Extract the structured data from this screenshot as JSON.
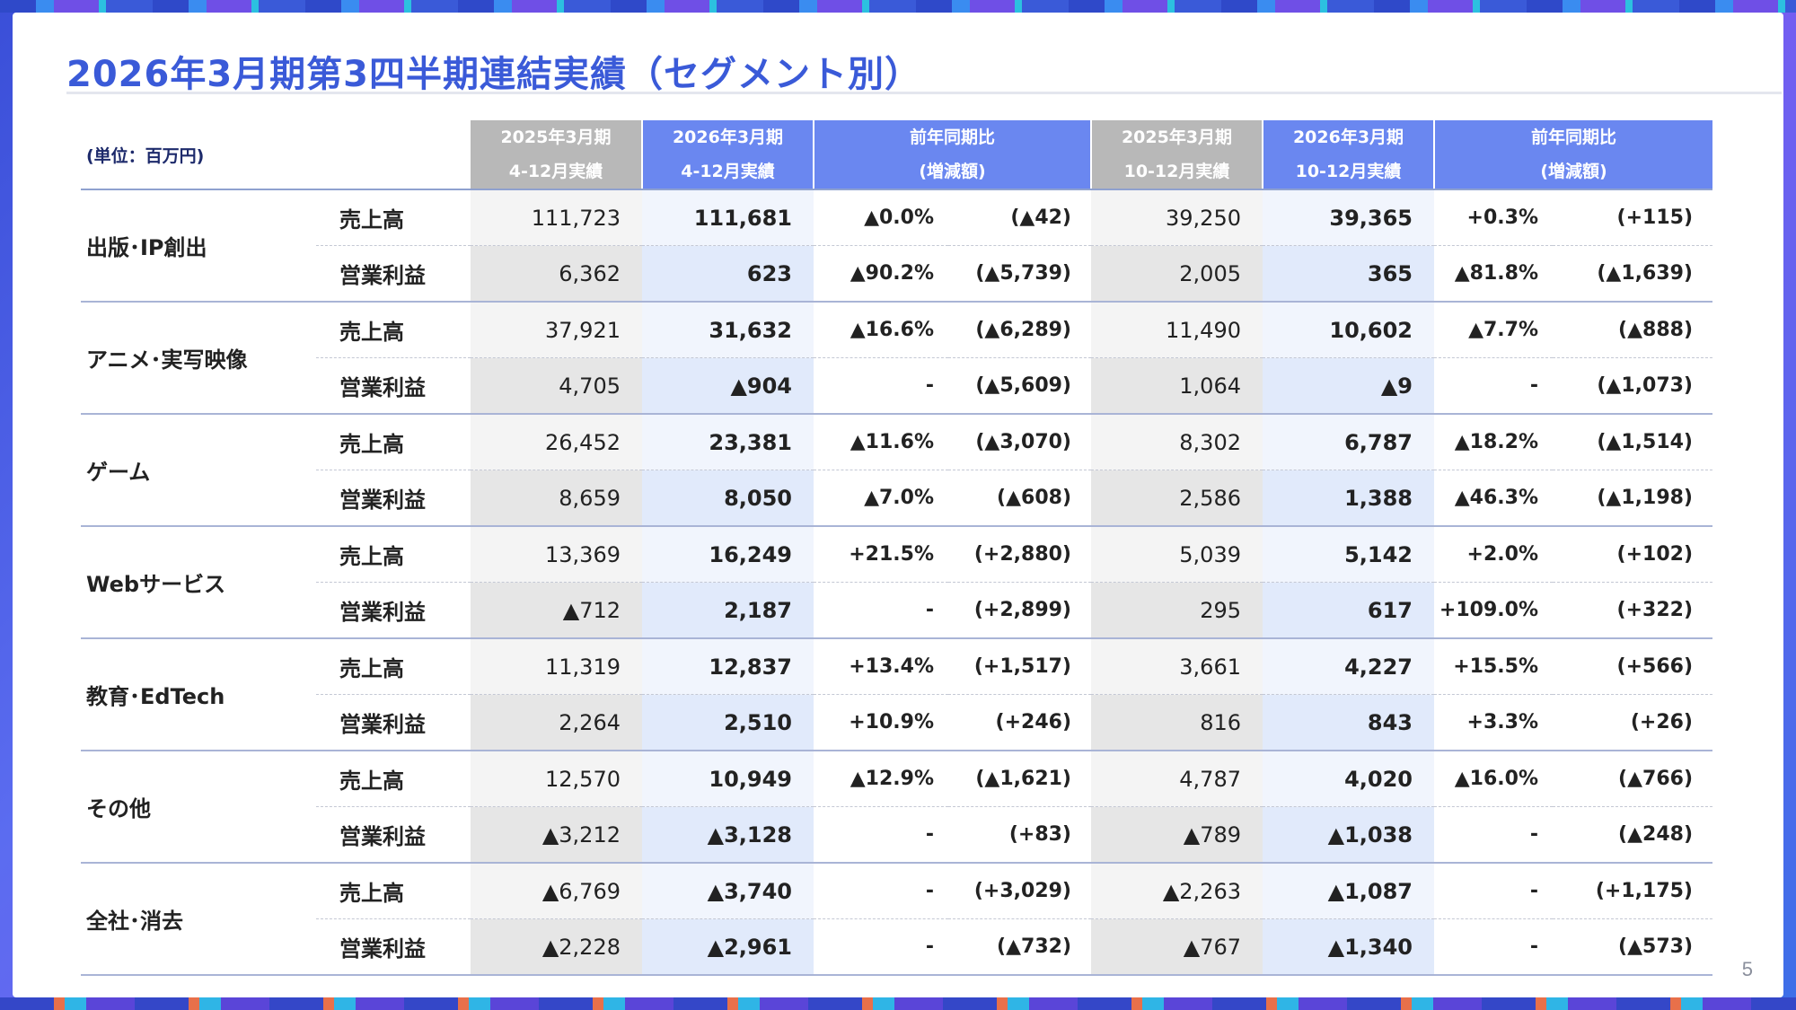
{
  "title": "2026年3月期第3四半期連結実績（セグメント別）",
  "page_number": "5",
  "unit_label": "(単位：百万円)",
  "headers": {
    "prev_9m": [
      "2025年3月期",
      "4-12月実績"
    ],
    "cur_9m": [
      "2026年3月期",
      "4-12月実績"
    ],
    "yoy_9m": [
      "前年同期比",
      "(増減額)"
    ],
    "prev_q3": [
      "2025年3月期",
      "10-12月実績"
    ],
    "cur_q3": [
      "2026年3月期",
      "10-12月実績"
    ],
    "yoy_q3": [
      "前年同期比",
      "(増減額)"
    ]
  },
  "segments": [
    {
      "name": "出版･IP創出",
      "sales": {
        "label": "売上高",
        "prev_9m": "111,723",
        "cur_9m": "111,681",
        "pct_9m": "▲0.0%",
        "amt_9m": "(▲42)",
        "prev_q3": "39,250",
        "cur_q3": "39,365",
        "pct_q3": "+0.3%",
        "amt_q3": "(+115)"
      },
      "op": {
        "label": "営業利益",
        "prev_9m": "6,362",
        "cur_9m": "623",
        "pct_9m": "▲90.2%",
        "amt_9m": "(▲5,739)",
        "prev_q3": "2,005",
        "cur_q3": "365",
        "pct_q3": "▲81.8%",
        "amt_q3": "(▲1,639)"
      }
    },
    {
      "name": "アニメ･実写映像",
      "sales": {
        "label": "売上高",
        "prev_9m": "37,921",
        "cur_9m": "31,632",
        "pct_9m": "▲16.6%",
        "amt_9m": "(▲6,289)",
        "prev_q3": "11,490",
        "cur_q3": "10,602",
        "pct_q3": "▲7.7%",
        "amt_q3": "(▲888)"
      },
      "op": {
        "label": "営業利益",
        "prev_9m": "4,705",
        "cur_9m": "▲904",
        "pct_9m": "-",
        "amt_9m": "(▲5,609)",
        "prev_q3": "1,064",
        "cur_q3": "▲9",
        "pct_q3": "-",
        "amt_q3": "(▲1,073)"
      }
    },
    {
      "name": "ゲーム",
      "sales": {
        "label": "売上高",
        "prev_9m": "26,452",
        "cur_9m": "23,381",
        "pct_9m": "▲11.6%",
        "amt_9m": "(▲3,070)",
        "prev_q3": "8,302",
        "cur_q3": "6,787",
        "pct_q3": "▲18.2%",
        "amt_q3": "(▲1,514)"
      },
      "op": {
        "label": "営業利益",
        "prev_9m": "8,659",
        "cur_9m": "8,050",
        "pct_9m": "▲7.0%",
        "amt_9m": "(▲608)",
        "prev_q3": "2,586",
        "cur_q3": "1,388",
        "pct_q3": "▲46.3%",
        "amt_q3": "(▲1,198)"
      }
    },
    {
      "name": "Webサービス",
      "sales": {
        "label": "売上高",
        "prev_9m": "13,369",
        "cur_9m": "16,249",
        "pct_9m": "+21.5%",
        "amt_9m": "(+2,880)",
        "prev_q3": "5,039",
        "cur_q3": "5,142",
        "pct_q3": "+2.0%",
        "amt_q3": "(+102)"
      },
      "op": {
        "label": "営業利益",
        "prev_9m": "▲712",
        "cur_9m": "2,187",
        "pct_9m": "-",
        "amt_9m": "(+2,899)",
        "prev_q3": "295",
        "cur_q3": "617",
        "pct_q3": "+109.0%",
        "amt_q3": "(+322)"
      }
    },
    {
      "name": "教育･EdTech",
      "sales": {
        "label": "売上高",
        "prev_9m": "11,319",
        "cur_9m": "12,837",
        "pct_9m": "+13.4%",
        "amt_9m": "(+1,517)",
        "prev_q3": "3,661",
        "cur_q3": "4,227",
        "pct_q3": "+15.5%",
        "amt_q3": "(+566)"
      },
      "op": {
        "label": "営業利益",
        "prev_9m": "2,264",
        "cur_9m": "2,510",
        "pct_9m": "+10.9%",
        "amt_9m": "(+246)",
        "prev_q3": "816",
        "cur_q3": "843",
        "pct_q3": "+3.3%",
        "amt_q3": "(+26)"
      }
    },
    {
      "name": "その他",
      "sales": {
        "label": "売上高",
        "prev_9m": "12,570",
        "cur_9m": "10,949",
        "pct_9m": "▲12.9%",
        "amt_9m": "(▲1,621)",
        "prev_q3": "4,787",
        "cur_q3": "4,020",
        "pct_q3": "▲16.0%",
        "amt_q3": "(▲766)"
      },
      "op": {
        "label": "営業利益",
        "prev_9m": "▲3,212",
        "cur_9m": "▲3,128",
        "pct_9m": "-",
        "amt_9m": "(+83)",
        "prev_q3": "▲789",
        "cur_q3": "▲1,038",
        "pct_q3": "-",
        "amt_q3": "(▲248)"
      }
    },
    {
      "name": "全社･消去",
      "sales": {
        "label": "売上高",
        "prev_9m": "▲6,769",
        "cur_9m": "▲3,740",
        "pct_9m": "-",
        "amt_9m": "(+3,029)",
        "prev_q3": "▲2,263",
        "cur_q3": "▲1,087",
        "pct_q3": "-",
        "amt_q3": "(+1,175)"
      },
      "op": {
        "label": "営業利益",
        "prev_9m": "▲2,228",
        "cur_9m": "▲2,961",
        "pct_9m": "-",
        "amt_9m": "(▲732)",
        "prev_q3": "▲767",
        "cur_q3": "▲1,340",
        "pct_q3": "-",
        "amt_q3": "(▲573)"
      }
    }
  ]
}
